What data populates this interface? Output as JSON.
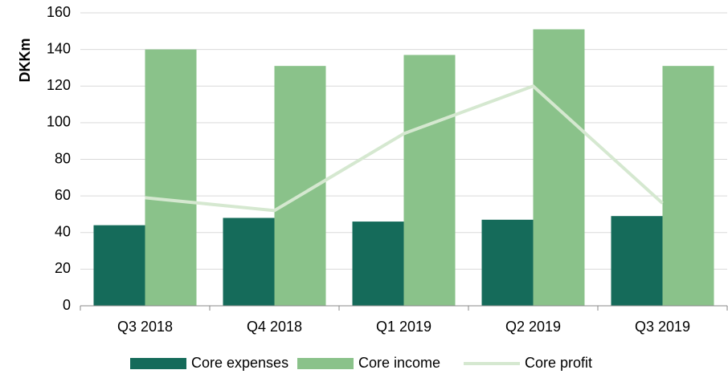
{
  "chart_data": {
    "type": "bar_line",
    "y_label": "DKKm",
    "categories": [
      "Q3 2018",
      "Q4 2018",
      "Q1 2019",
      "Q2 2019",
      "Q3 2019"
    ],
    "series": [
      {
        "name": "Core expenses",
        "color": "#156b5a",
        "kind": "bar",
        "values": [
          44,
          48,
          46,
          47,
          49
        ]
      },
      {
        "name": "Core income",
        "color": "#8ac28a",
        "kind": "bar",
        "values": [
          140,
          131,
          137,
          151,
          131
        ]
      },
      {
        "name": "Core profit",
        "color": "#d5e8d0",
        "kind": "line",
        "values": [
          59,
          52,
          94,
          120,
          56
        ]
      }
    ],
    "ylim": [
      0,
      160
    ],
    "yticks": [
      0,
      20,
      40,
      60,
      80,
      100,
      120,
      140,
      160
    ],
    "grid": true,
    "legend": "bottom"
  }
}
